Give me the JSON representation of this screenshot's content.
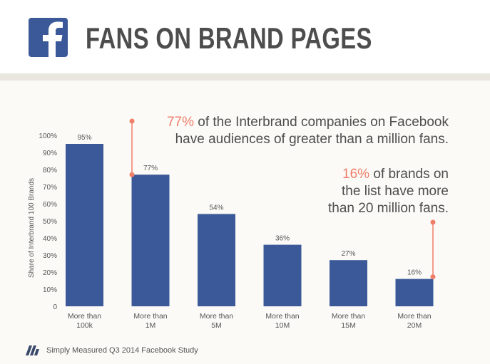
{
  "header": {
    "logo_icon": "facebook-f-icon",
    "title": "FANS ON BRAND PAGES",
    "brand_color": "#3b5998"
  },
  "callouts": [
    {
      "highlight": "77%",
      "line1_rest": " of the Interbrand companies on Facebook",
      "line2": "have audiences of greater than a million fans."
    },
    {
      "highlight": "16%",
      "line1_rest": " of brands on",
      "line2": "the list have more",
      "line3": "than 20 million fans."
    }
  ],
  "footer": {
    "icon": "simply-measured-logo-icon",
    "text": "Simply Measured Q3 2014 Facebook Study"
  },
  "colors": {
    "bar": "#3b5998",
    "accent": "#ef7f69",
    "text": "#4d4d4d"
  },
  "chart_data": {
    "type": "bar",
    "title": "",
    "xlabel": "",
    "ylabel": "Share of Interbrand 100 Brands",
    "categories": [
      [
        "More than",
        "100k"
      ],
      [
        "More than",
        "1M"
      ],
      [
        "More than",
        "5M"
      ],
      [
        "More than",
        "10M"
      ],
      [
        "More than",
        "15M"
      ],
      [
        "More than",
        "20M"
      ]
    ],
    "values": [
      95,
      77,
      54,
      36,
      27,
      16
    ],
    "data_labels": [
      "95%",
      "77%",
      "54%",
      "36%",
      "27%",
      "16%"
    ],
    "ylim": [
      0,
      100
    ],
    "yticks": [
      0,
      10,
      20,
      30,
      40,
      50,
      60,
      70,
      80,
      90,
      100
    ],
    "ytick_labels": [
      "0",
      "10%",
      "20%",
      "30%",
      "40%",
      "50%",
      "60%",
      "70%",
      "80%",
      "90%",
      "100%"
    ],
    "grid": false,
    "legend": "none"
  }
}
